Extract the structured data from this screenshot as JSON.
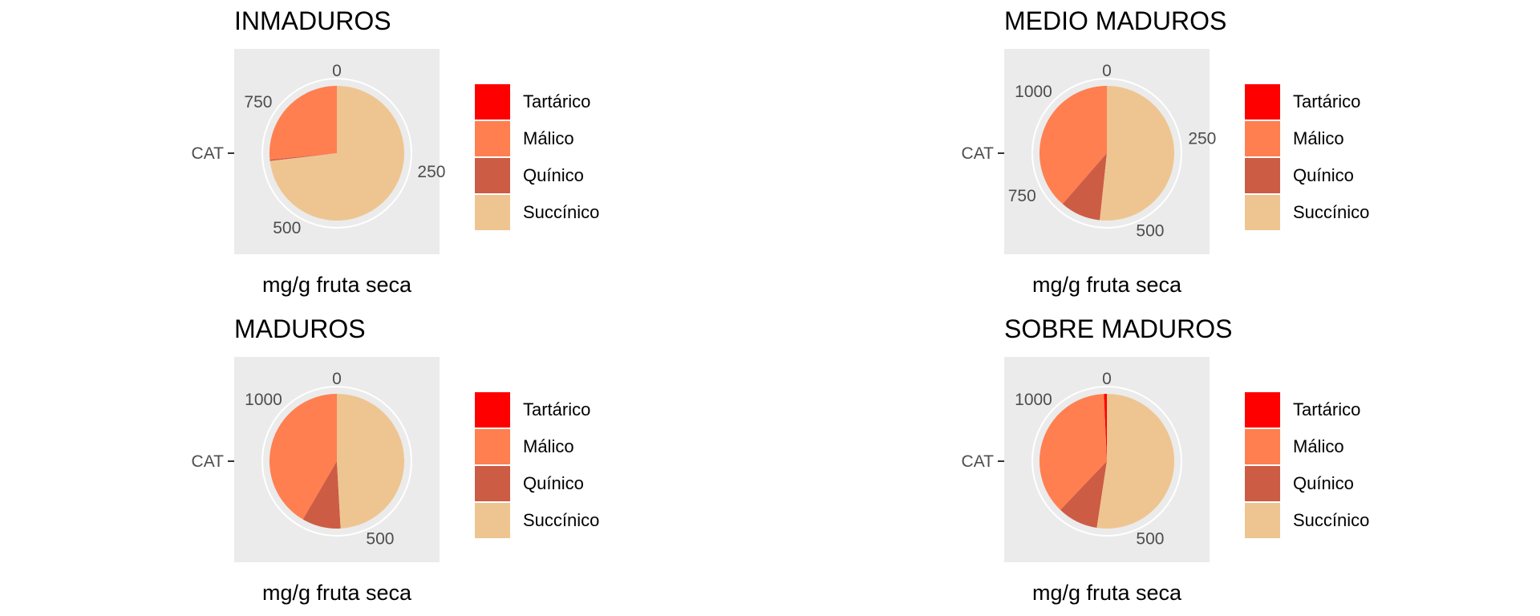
{
  "chart_data": [
    {
      "type": "pie",
      "title": "INMADUROS",
      "xlabel": "mg/g fruta seca",
      "ylabel": "",
      "y_tick_label": "CAT",
      "theta_ticks": [
        0,
        250,
        500,
        750
      ],
      "theta_max": 875,
      "categories": [
        "Tartárico",
        "Málico",
        "Quínico",
        "Succínico"
      ],
      "values": [
        0,
        232,
        3,
        640
      ],
      "colors": [
        "#FF0000",
        "#FF7F50",
        "#CD5C45",
        "#EEC591"
      ]
    },
    {
      "type": "pie",
      "title": "MEDIO MADUROS",
      "xlabel": "mg/g fruta seca",
      "ylabel": "",
      "y_tick_label": "CAT",
      "theta_ticks": [
        0,
        250,
        500,
        750,
        1000
      ],
      "theta_max": 1130,
      "categories": [
        "Tartárico",
        "Málico",
        "Quínico",
        "Succínico"
      ],
      "values": [
        0,
        436,
        110,
        584
      ],
      "colors": [
        "#FF0000",
        "#FF7F50",
        "#CD5C45",
        "#EEC591"
      ]
    },
    {
      "type": "pie",
      "title": "MADUROS",
      "xlabel": "mg/g fruta seca",
      "ylabel": "",
      "y_tick_label": "CAT",
      "theta_ticks": [
        0,
        500,
        1000
      ],
      "theta_max": 1130,
      "categories": [
        "Tartárico",
        "Málico",
        "Quínico",
        "Succínico"
      ],
      "values": [
        0,
        470,
        105,
        555
      ],
      "colors": [
        "#FF0000",
        "#FF7F50",
        "#CD5C45",
        "#EEC591"
      ]
    },
    {
      "type": "pie",
      "title": "SOBRE MADUROS",
      "xlabel": "mg/g fruta seca",
      "ylabel": "",
      "y_tick_label": "CAT",
      "theta_ticks": [
        0,
        500,
        1000
      ],
      "theta_max": 1130,
      "categories": [
        "Tartárico",
        "Málico",
        "Quínico",
        "Succínico"
      ],
      "values": [
        8,
        420,
        110,
        592
      ],
      "colors": [
        "#FF0000",
        "#FF7F50",
        "#CD5C45",
        "#EEC591"
      ]
    }
  ],
  "legend": {
    "items": [
      {
        "label": "Tartárico",
        "color": "#FF0000"
      },
      {
        "label": "Málico",
        "color": "#FF7F50"
      },
      {
        "label": "Quínico",
        "color": "#CD5C45"
      },
      {
        "label": "Succínico",
        "color": "#EEC591"
      }
    ]
  },
  "colors": {
    "panel_background": "#EBEBEB",
    "grid": "#FFFFFF",
    "tick_text": "#4D4D4D"
  }
}
